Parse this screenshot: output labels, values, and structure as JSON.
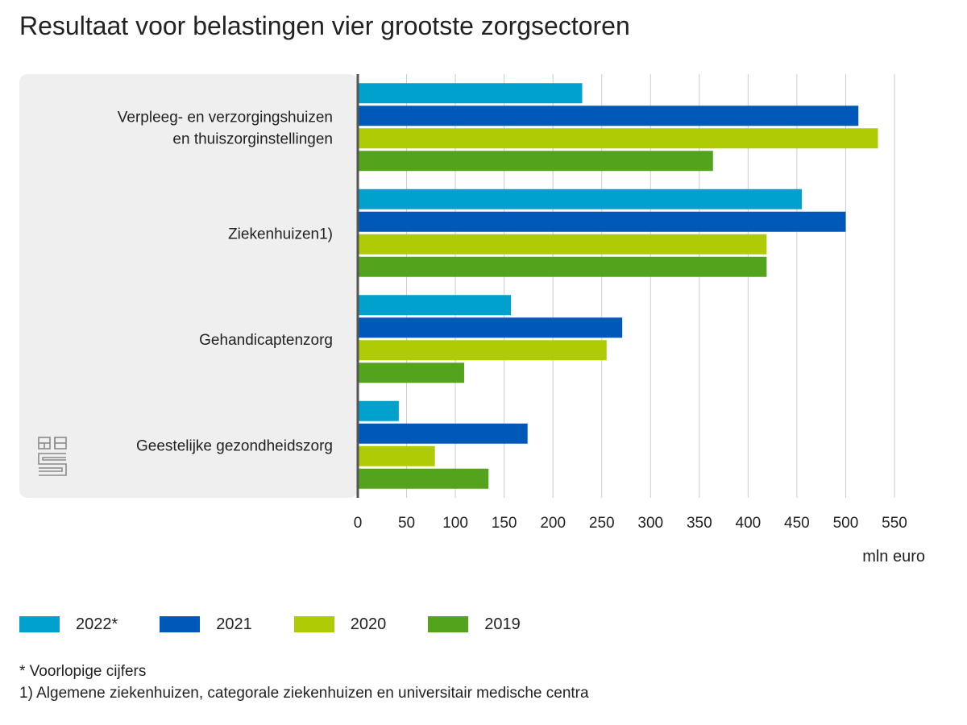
{
  "chart_data": {
    "type": "bar",
    "orientation": "horizontal",
    "title": "Resultaat voor belastingen vier grootste zorgsectoren",
    "categories": [
      [
        "Verpleeg- en verzorgingshuizen",
        "en thuiszorginstellingen"
      ],
      [
        "Ziekenhuizen1)"
      ],
      [
        "Gehandicaptenzorg"
      ],
      [
        "Geestelijke gezondheidszorg"
      ]
    ],
    "series": [
      {
        "name": "2022*",
        "color": "#00a1cd",
        "values": [
          230,
          455,
          157,
          42
        ]
      },
      {
        "name": "2021",
        "color": "#0058b8",
        "values": [
          513,
          500,
          271,
          174
        ]
      },
      {
        "name": "2020",
        "color": "#afcb05",
        "values": [
          533,
          419,
          255,
          79
        ]
      },
      {
        "name": "2019",
        "color": "#53a31d",
        "values": [
          364,
          419,
          109,
          134
        ]
      }
    ],
    "xlim": [
      0,
      550
    ],
    "xticks": [
      0,
      50,
      100,
      150,
      200,
      250,
      300,
      350,
      400,
      450,
      500,
      550
    ],
    "xlabel": "mln euro",
    "grid": "vertical",
    "legend": "bottom"
  },
  "notes": [
    "* Voorlopige cijfers",
    "1) Algemene ziekenhuizen, categorale ziekenhuizen en universitair medische centra"
  ],
  "logo": "cbs-logo",
  "colors": {
    "panel": "#efefef",
    "grid": "#cccccc",
    "axis": "#555555"
  }
}
